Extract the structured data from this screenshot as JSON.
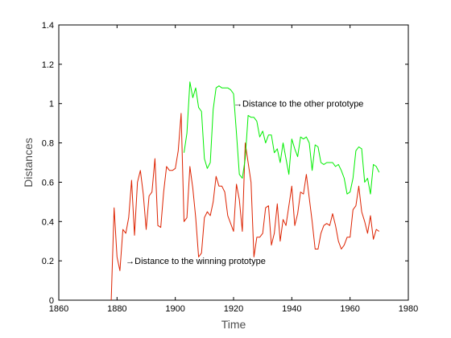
{
  "chart_data": {
    "type": "line",
    "title": "",
    "xlabel": "Time",
    "ylabel": "Distances",
    "xlim": [
      1860,
      1980
    ],
    "ylim": [
      0,
      1.4
    ],
    "xticks": [
      1860,
      1880,
      1900,
      1920,
      1940,
      1960,
      1980
    ],
    "yticks": [
      0,
      0.2,
      0.4,
      0.6,
      0.8,
      1,
      1.2,
      1.4
    ],
    "grid": false,
    "colors": {
      "winning": "#dd2200",
      "other": "#00ee00",
      "axis": "#000000"
    },
    "annotations": [
      {
        "text": "→Distance to the other prototype",
        "x": 1920,
        "y": 1.0
      },
      {
        "text": "→Distance to the winning prototype",
        "x": 1883,
        "y": 0.2
      }
    ],
    "series": [
      {
        "key": "winning",
        "x": [
          1878,
          1879,
          1880,
          1881,
          1882,
          1883,
          1884,
          1885,
          1886,
          1887,
          1888,
          1889,
          1890,
          1891,
          1892,
          1893,
          1894,
          1895,
          1896,
          1897,
          1898,
          1899,
          1900,
          1901,
          1902,
          1903,
          1904,
          1905,
          1906,
          1907,
          1908,
          1909,
          1910,
          1911,
          1912,
          1913,
          1914,
          1915,
          1916,
          1917,
          1918,
          1919,
          1920,
          1921,
          1922,
          1923,
          1924,
          1925,
          1926,
          1927,
          1928,
          1929,
          1930,
          1931,
          1932,
          1933,
          1934,
          1935,
          1936,
          1937,
          1938,
          1939,
          1940,
          1941,
          1942,
          1943,
          1944,
          1945,
          1946,
          1947,
          1948,
          1949,
          1950,
          1951,
          1952,
          1953,
          1954,
          1955,
          1956,
          1957,
          1958,
          1959,
          1960,
          1961,
          1962,
          1963,
          1964,
          1965,
          1966,
          1967,
          1968,
          1969,
          1970
        ],
        "y": [
          0.0,
          0.47,
          0.22,
          0.15,
          0.36,
          0.34,
          0.42,
          0.61,
          0.33,
          0.6,
          0.66,
          0.54,
          0.36,
          0.53,
          0.55,
          0.72,
          0.38,
          0.37,
          0.55,
          0.68,
          0.66,
          0.66,
          0.67,
          0.76,
          0.95,
          0.4,
          0.42,
          0.68,
          0.57,
          0.42,
          0.22,
          0.24,
          0.42,
          0.45,
          0.43,
          0.5,
          0.63,
          0.58,
          0.58,
          0.55,
          0.43,
          0.39,
          0.35,
          0.59,
          0.51,
          0.35,
          0.8,
          0.7,
          0.6,
          0.22,
          0.32,
          0.32,
          0.34,
          0.47,
          0.48,
          0.28,
          0.34,
          0.49,
          0.3,
          0.41,
          0.38,
          0.48,
          0.58,
          0.38,
          0.44,
          0.55,
          0.54,
          0.64,
          0.52,
          0.4,
          0.26,
          0.26,
          0.34,
          0.38,
          0.39,
          0.38,
          0.44,
          0.38,
          0.3,
          0.26,
          0.28,
          0.32,
          0.32,
          0.46,
          0.48,
          0.58,
          0.45,
          0.4,
          0.34,
          0.43,
          0.31,
          0.36,
          0.35
        ]
      },
      {
        "key": "other",
        "x": [
          1903,
          1904,
          1905,
          1906,
          1907,
          1908,
          1909,
          1910,
          1911,
          1912,
          1913,
          1914,
          1915,
          1916,
          1917,
          1918,
          1919,
          1920,
          1921,
          1922,
          1923,
          1924,
          1925,
          1926,
          1927,
          1928,
          1929,
          1930,
          1931,
          1932,
          1933,
          1934,
          1935,
          1936,
          1937,
          1938,
          1939,
          1940,
          1941,
          1942,
          1943,
          1944,
          1945,
          1946,
          1947,
          1948,
          1949,
          1950,
          1951,
          1952,
          1953,
          1954,
          1955,
          1956,
          1957,
          1958,
          1959,
          1960,
          1961,
          1962,
          1963,
          1964,
          1965,
          1966,
          1967,
          1968,
          1969,
          1970
        ],
        "y": [
          0.75,
          0.85,
          1.11,
          1.03,
          1.08,
          0.98,
          0.96,
          0.72,
          0.67,
          0.7,
          0.97,
          1.08,
          1.09,
          1.08,
          1.08,
          1.08,
          1.07,
          1.05,
          0.85,
          0.64,
          0.62,
          0.72,
          0.94,
          0.93,
          0.93,
          0.91,
          0.83,
          0.86,
          0.8,
          0.84,
          0.84,
          0.75,
          0.77,
          0.7,
          0.8,
          0.72,
          0.64,
          0.82,
          0.77,
          0.73,
          0.83,
          0.82,
          0.83,
          0.8,
          0.66,
          0.79,
          0.78,
          0.7,
          0.69,
          0.7,
          0.7,
          0.7,
          0.68,
          0.69,
          0.66,
          0.62,
          0.54,
          0.55,
          0.62,
          0.76,
          0.78,
          0.77,
          0.6,
          0.62,
          0.54,
          0.69,
          0.68,
          0.65
        ]
      }
    ]
  }
}
